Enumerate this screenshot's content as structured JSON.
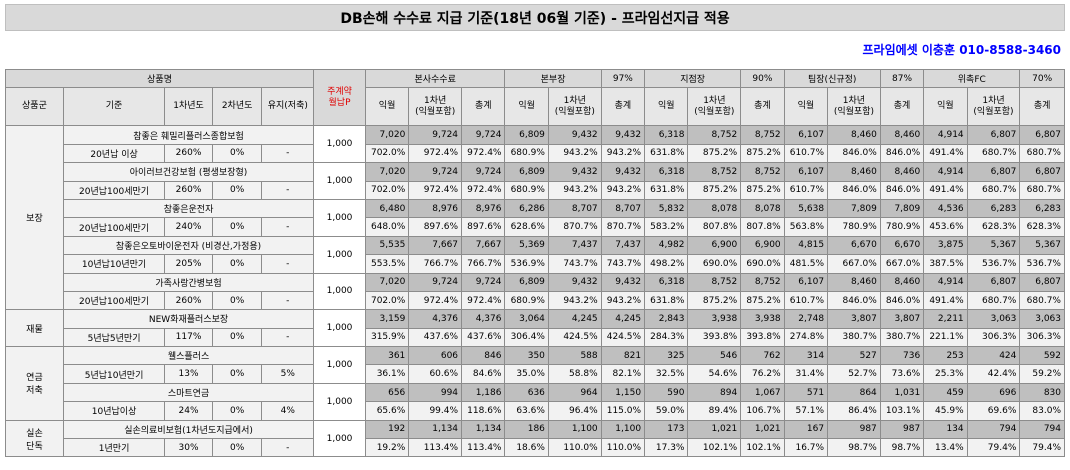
{
  "title": "DB손해 수수료 지급 기준(18년 06월 기준) - 프라임선지급 적용",
  "contact": "프라임에셋 이충훈 010-8588-3460",
  "header": {
    "product_name": "상품명",
    "monthly": "주계약\n월납P",
    "headquarters": "본사수수료",
    "division": "본부장",
    "division_rate": "97%",
    "branch": "지점장",
    "branch_rate": "90%",
    "team": "팀장(신규정)",
    "team_rate": "87%",
    "fc": "위촉FC",
    "fc_rate": "70%",
    "col_group": "상품군",
    "col_basis": "기준",
    "col_y1": "1차년도",
    "col_y2": "2차년도",
    "col_keep": "유지(저축)",
    "sub_month": "익월",
    "sub_year1": "1차년\n(익월포함)",
    "sub_total": "총계"
  },
  "groups": [
    {
      "name": "보장",
      "products": [
        {
          "name": "참좋은 훼밀리플러스종합보험",
          "basis": "20년납 이상",
          "y1": "260%",
          "y2": "0%",
          "keep": "-",
          "premium": "1,000",
          "amounts": [
            "7,020",
            "9,724",
            "9,724",
            "6,809",
            "9,432",
            "9,432",
            "6,318",
            "8,752",
            "8,752",
            "6,107",
            "8,460",
            "8,460",
            "4,914",
            "6,807",
            "6,807"
          ],
          "rates": [
            "702.0%",
            "972.4%",
            "972.4%",
            "680.9%",
            "943.2%",
            "943.2%",
            "631.8%",
            "875.2%",
            "875.2%",
            "610.7%",
            "846.0%",
            "846.0%",
            "491.4%",
            "680.7%",
            "680.7%"
          ]
        },
        {
          "name": "아이러브건강보험 (평생보장형)",
          "basis": "20년납100세만기",
          "y1": "260%",
          "y2": "0%",
          "keep": "-",
          "premium": "1,000",
          "amounts": [
            "7,020",
            "9,724",
            "9,724",
            "6,809",
            "9,432",
            "9,432",
            "6,318",
            "8,752",
            "8,752",
            "6,107",
            "8,460",
            "8,460",
            "4,914",
            "6,807",
            "6,807"
          ],
          "rates": [
            "702.0%",
            "972.4%",
            "972.4%",
            "680.9%",
            "943.2%",
            "943.2%",
            "631.8%",
            "875.2%",
            "875.2%",
            "610.7%",
            "846.0%",
            "846.0%",
            "491.4%",
            "680.7%",
            "680.7%"
          ]
        },
        {
          "name": "참좋은운전자",
          "basis": "20년납100세만기",
          "y1": "240%",
          "y2": "0%",
          "keep": "-",
          "premium": "1,000",
          "amounts": [
            "6,480",
            "8,976",
            "8,976",
            "6,286",
            "8,707",
            "8,707",
            "5,832",
            "8,078",
            "8,078",
            "5,638",
            "7,809",
            "7,809",
            "4,536",
            "6,283",
            "6,283"
          ],
          "rates": [
            "648.0%",
            "897.6%",
            "897.6%",
            "628.6%",
            "870.7%",
            "870.7%",
            "583.2%",
            "807.8%",
            "807.8%",
            "563.8%",
            "780.9%",
            "780.9%",
            "453.6%",
            "628.3%",
            "628.3%"
          ]
        },
        {
          "name": "참좋은오토바이운전자 (비경산,가정용)",
          "basis": "10년납10년만기",
          "y1": "205%",
          "y2": "0%",
          "keep": "-",
          "premium": "1,000",
          "amounts": [
            "5,535",
            "7,667",
            "7,667",
            "5,369",
            "7,437",
            "7,437",
            "4,982",
            "6,900",
            "6,900",
            "4,815",
            "6,670",
            "6,670",
            "3,875",
            "5,367",
            "5,367"
          ],
          "rates": [
            "553.5%",
            "766.7%",
            "766.7%",
            "536.9%",
            "743.7%",
            "743.7%",
            "498.2%",
            "690.0%",
            "690.0%",
            "481.5%",
            "667.0%",
            "667.0%",
            "387.5%",
            "536.7%",
            "536.7%"
          ]
        },
        {
          "name": "가족사랑간병보험",
          "basis": "20년납100세만기",
          "y1": "260%",
          "y2": "0%",
          "keep": "-",
          "premium": "1,000",
          "amounts": [
            "7,020",
            "9,724",
            "9,724",
            "6,809",
            "9,432",
            "9,432",
            "6,318",
            "8,752",
            "8,752",
            "6,107",
            "8,460",
            "8,460",
            "4,914",
            "6,807",
            "6,807"
          ],
          "rates": [
            "702.0%",
            "972.4%",
            "972.4%",
            "680.9%",
            "943.2%",
            "943.2%",
            "631.8%",
            "875.2%",
            "875.2%",
            "610.7%",
            "846.0%",
            "846.0%",
            "491.4%",
            "680.7%",
            "680.7%"
          ]
        }
      ]
    },
    {
      "name": "재물",
      "products": [
        {
          "name": "NEW화재플러스보장",
          "basis": "5년납5년만기",
          "y1": "117%",
          "y2": "0%",
          "keep": "-",
          "premium": "1,000",
          "amounts": [
            "3,159",
            "4,376",
            "4,376",
            "3,064",
            "4,245",
            "4,245",
            "2,843",
            "3,938",
            "3,938",
            "2,748",
            "3,807",
            "3,807",
            "2,211",
            "3,063",
            "3,063"
          ],
          "rates": [
            "315.9%",
            "437.6%",
            "437.6%",
            "306.4%",
            "424.5%",
            "424.5%",
            "284.3%",
            "393.8%",
            "393.8%",
            "274.8%",
            "380.7%",
            "380.7%",
            "221.1%",
            "306.3%",
            "306.3%"
          ]
        }
      ]
    },
    {
      "name": "연금\n저축",
      "products": [
        {
          "name": "웰스플러스",
          "basis": "5년납10년만기",
          "y1": "13%",
          "y2": "0%",
          "keep": "5%",
          "premium": "1,000",
          "amounts": [
            "361",
            "606",
            "846",
            "350",
            "588",
            "821",
            "325",
            "546",
            "762",
            "314",
            "527",
            "736",
            "253",
            "424",
            "592"
          ],
          "rates": [
            "36.1%",
            "60.6%",
            "84.6%",
            "35.0%",
            "58.8%",
            "82.1%",
            "32.5%",
            "54.6%",
            "76.2%",
            "31.4%",
            "52.7%",
            "73.6%",
            "25.3%",
            "42.4%",
            "59.2%"
          ]
        },
        {
          "name": "스마트연금",
          "basis": "10년납이상",
          "y1": "24%",
          "y2": "0%",
          "keep": "4%",
          "premium": "1,000",
          "amounts": [
            "656",
            "994",
            "1,186",
            "636",
            "964",
            "1,150",
            "590",
            "894",
            "1,067",
            "571",
            "864",
            "1,031",
            "459",
            "696",
            "830"
          ],
          "rates": [
            "65.6%",
            "99.4%",
            "118.6%",
            "63.6%",
            "96.4%",
            "115.0%",
            "59.0%",
            "89.4%",
            "106.7%",
            "57.1%",
            "86.4%",
            "103.1%",
            "45.9%",
            "69.6%",
            "83.0%"
          ]
        }
      ]
    },
    {
      "name": "실손\n단독",
      "products": [
        {
          "name": "실손의료비보험(1차년도지급에서)",
          "basis": "1년만기",
          "y1": "30%",
          "y2": "0%",
          "keep": "-",
          "premium": "1,000",
          "amounts": [
            "192",
            "1,134",
            "1,134",
            "186",
            "1,100",
            "1,100",
            "173",
            "1,021",
            "1,021",
            "167",
            "987",
            "987",
            "134",
            "794",
            "794"
          ],
          "rates": [
            "19.2%",
            "113.4%",
            "113.4%",
            "18.6%",
            "110.0%",
            "110.0%",
            "17.3%",
            "102.1%",
            "102.1%",
            "16.7%",
            "98.7%",
            "98.7%",
            "13.4%",
            "79.4%",
            "79.4%"
          ]
        }
      ]
    }
  ]
}
